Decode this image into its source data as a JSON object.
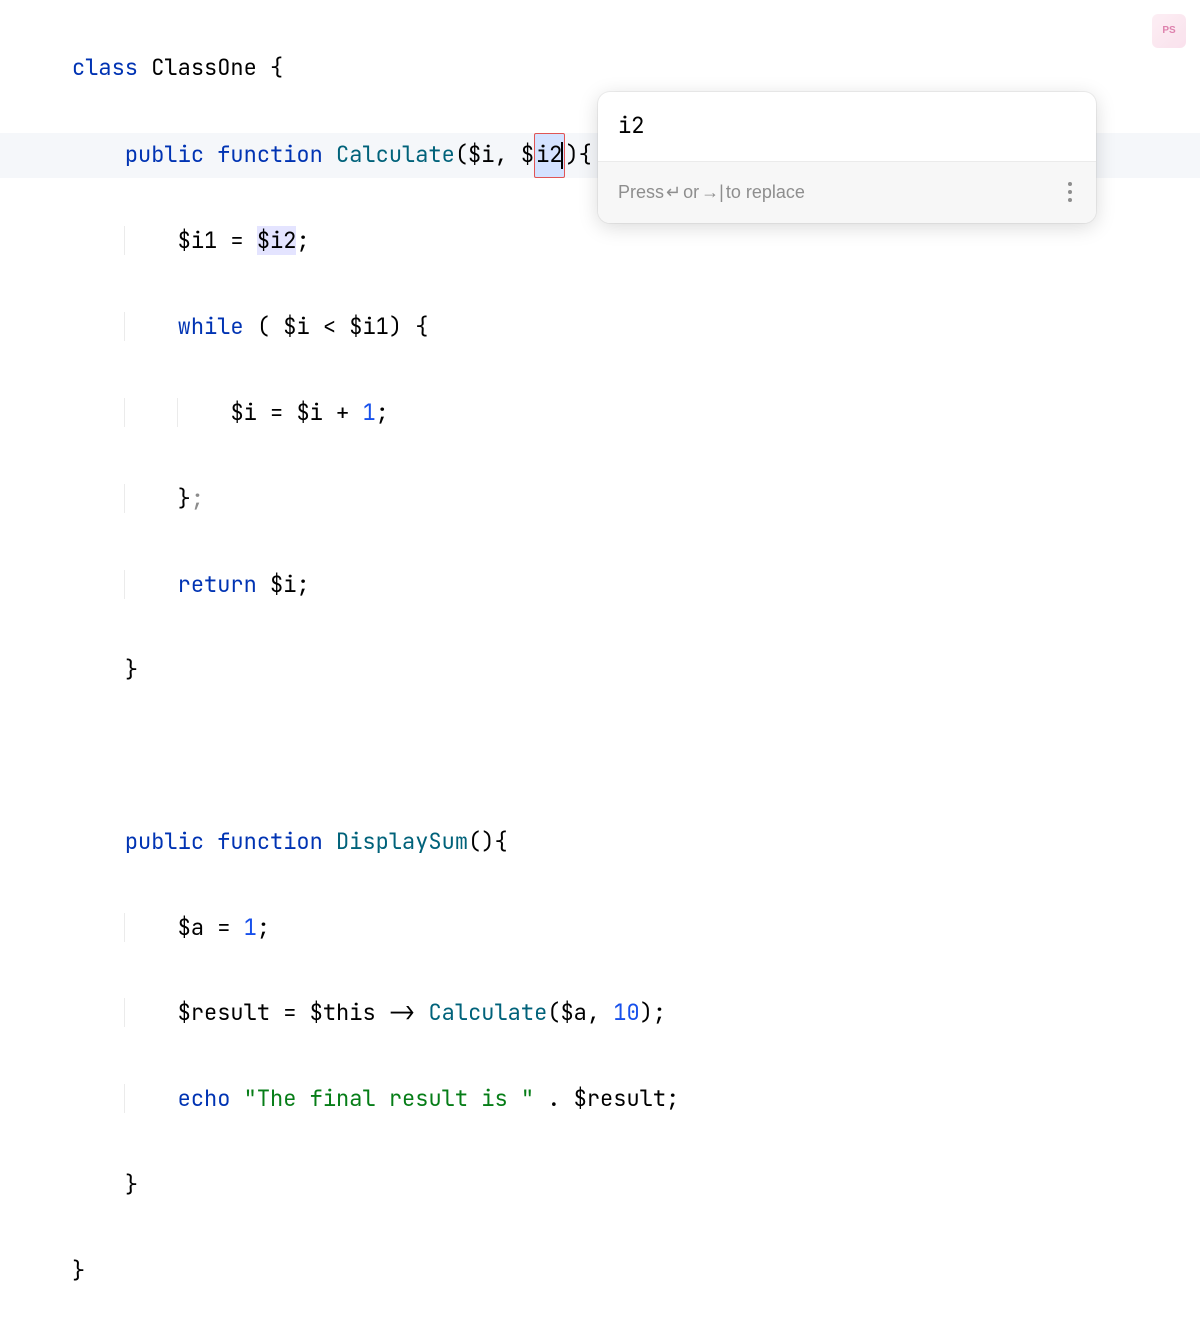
{
  "code": {
    "class_kw": "class",
    "class_name": "ClassOne",
    "public_kw": "public",
    "function_kw": "function",
    "fn1_name": "Calculate",
    "param1": "$i",
    "param2_prefix": "$",
    "param2_name": "i2",
    "l3_var": "$i1",
    "l3_assign": " = ",
    "l3_rhs_prefix": "$",
    "l3_rhs_name": "i2",
    "while_kw": "while",
    "l4_cond_lhs": "$i",
    "l4_cond_op": " < ",
    "l4_cond_rhs": "$i1",
    "l5_lhs": "$i",
    "l5_assign": " = ",
    "l5_rhs1": "$i",
    "l5_op": " + ",
    "l5_rhs2": "1",
    "return_kw": "return",
    "l7_var": "$i",
    "fn2_name": "DisplaySum",
    "l11_var": "$a",
    "l11_assign": " = ",
    "l11_val": "1",
    "l12_lhs": "$result",
    "l12_assign": " = ",
    "l12_this": "$this",
    "l12_arrow": " -> ",
    "l12_call": "Calculate",
    "l12_arg1": "$a",
    "l12_arg2": "10",
    "echo_kw": "echo",
    "l13_str": "\"The final result is \"",
    "l13_concat": " . ",
    "l13_var": "$result"
  },
  "popup": {
    "value": "i2",
    "hint_prefix": "Press ",
    "hint_mid": " or ",
    "hint_suffix": " to replace",
    "enter_glyph": "↵",
    "tab_glyph": "→|"
  },
  "badge": {
    "text": "PS"
  },
  "colors": {
    "keyword": "#0033b3",
    "function": "#00627a",
    "number": "#1750eb",
    "string": "#067d17",
    "ref_highlight_bg": "#e4e4ff",
    "rename_bg": "#d4e2ff",
    "rename_border": "#e05555",
    "line_highlight_bg": "#f5f7fa",
    "popup_hint_color": "#8e8e8e"
  }
}
